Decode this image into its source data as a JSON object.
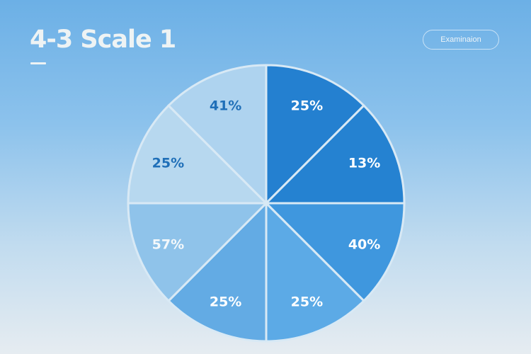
{
  "header": {
    "title": "4-3 Scale 1",
    "button_label": "Examinaion"
  },
  "chart_data": {
    "type": "pie",
    "title": "4-3 Scale 1",
    "note_equal_wedges": true,
    "labels": [
      "25%",
      "13%",
      "40%",
      "25%",
      "25%",
      "57%",
      "25%",
      "41%"
    ],
    "values": [
      25,
      13,
      40,
      25,
      25,
      57,
      25,
      41
    ],
    "colors": [
      "#2480d0",
      "#2582d1",
      "#3f97de",
      "#5caae6",
      "#63abe4",
      "#8fc3ea",
      "#b7d8ef",
      "#aed3ef"
    ],
    "label_colors": [
      "#ffffff",
      "#ffffff",
      "#ffffff",
      "#ffffff",
      "#ffffff",
      "#f4f8fb",
      "#1f6fb8",
      "#1f6fb8"
    ]
  }
}
